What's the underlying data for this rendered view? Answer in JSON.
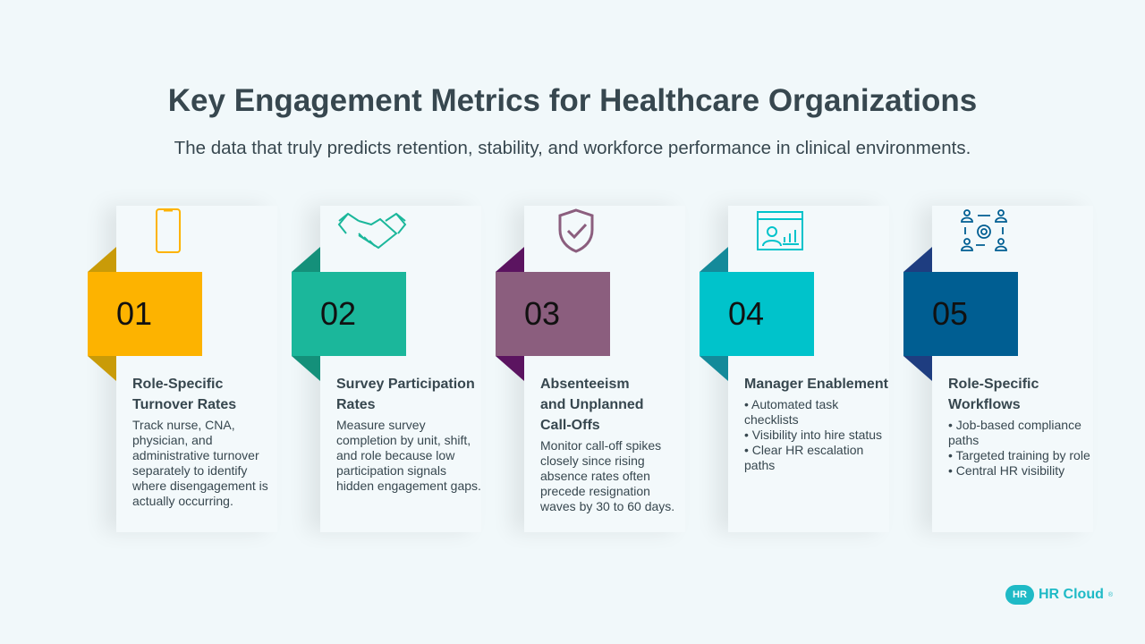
{
  "title": "Key Engagement Metrics for Healthcare Organizations",
  "subtitle": "The data that truly predicts retention, stability, and workforce performance in clinical environments.",
  "cards": [
    {
      "number": "01",
      "icon": "smartphone-icon",
      "color": "#FDB300",
      "fold": "#C99B08",
      "heading": "Role-Specific Turnover Rates",
      "body": "Track nurse, CNA, physician, and administrative turnover separately to identify where disengagement is actually occurring."
    },
    {
      "number": "02",
      "icon": "handshake-icon",
      "color": "#1BB79B",
      "fold": "#14907A",
      "heading": "Survey Participation Rates",
      "body": "Measure survey completion by unit, shift, and role because low participation signals hidden engagement gaps."
    },
    {
      "number": "03",
      "icon": "shield-check-icon",
      "color": "#8B5E7E",
      "fold": "#5B1460",
      "heading": "Absenteeism and Unplanned Call-Offs",
      "body": "Monitor call-off spikes closely since rising absence rates often precede resignation waves by 30 to 60 days."
    },
    {
      "number": "04",
      "icon": "dashboard-user-icon",
      "color": "#00C3CB",
      "fold": "#148A9A",
      "heading": "Manager Enablement",
      "body": "• Automated task checklists\n • Visibility into hire status\n • Clear HR escalation paths"
    },
    {
      "number": "05",
      "icon": "workflow-gear-icon",
      "color": "#005E92",
      "fold": "#1E3D80",
      "heading": "Role-Specific Workflows",
      "body": "• Job-based compliance paths\n • Targeted training by role\n • Central HR visibility"
    }
  ],
  "logo": {
    "mark": "HR",
    "text": "HR Cloud",
    "registered": "®"
  }
}
